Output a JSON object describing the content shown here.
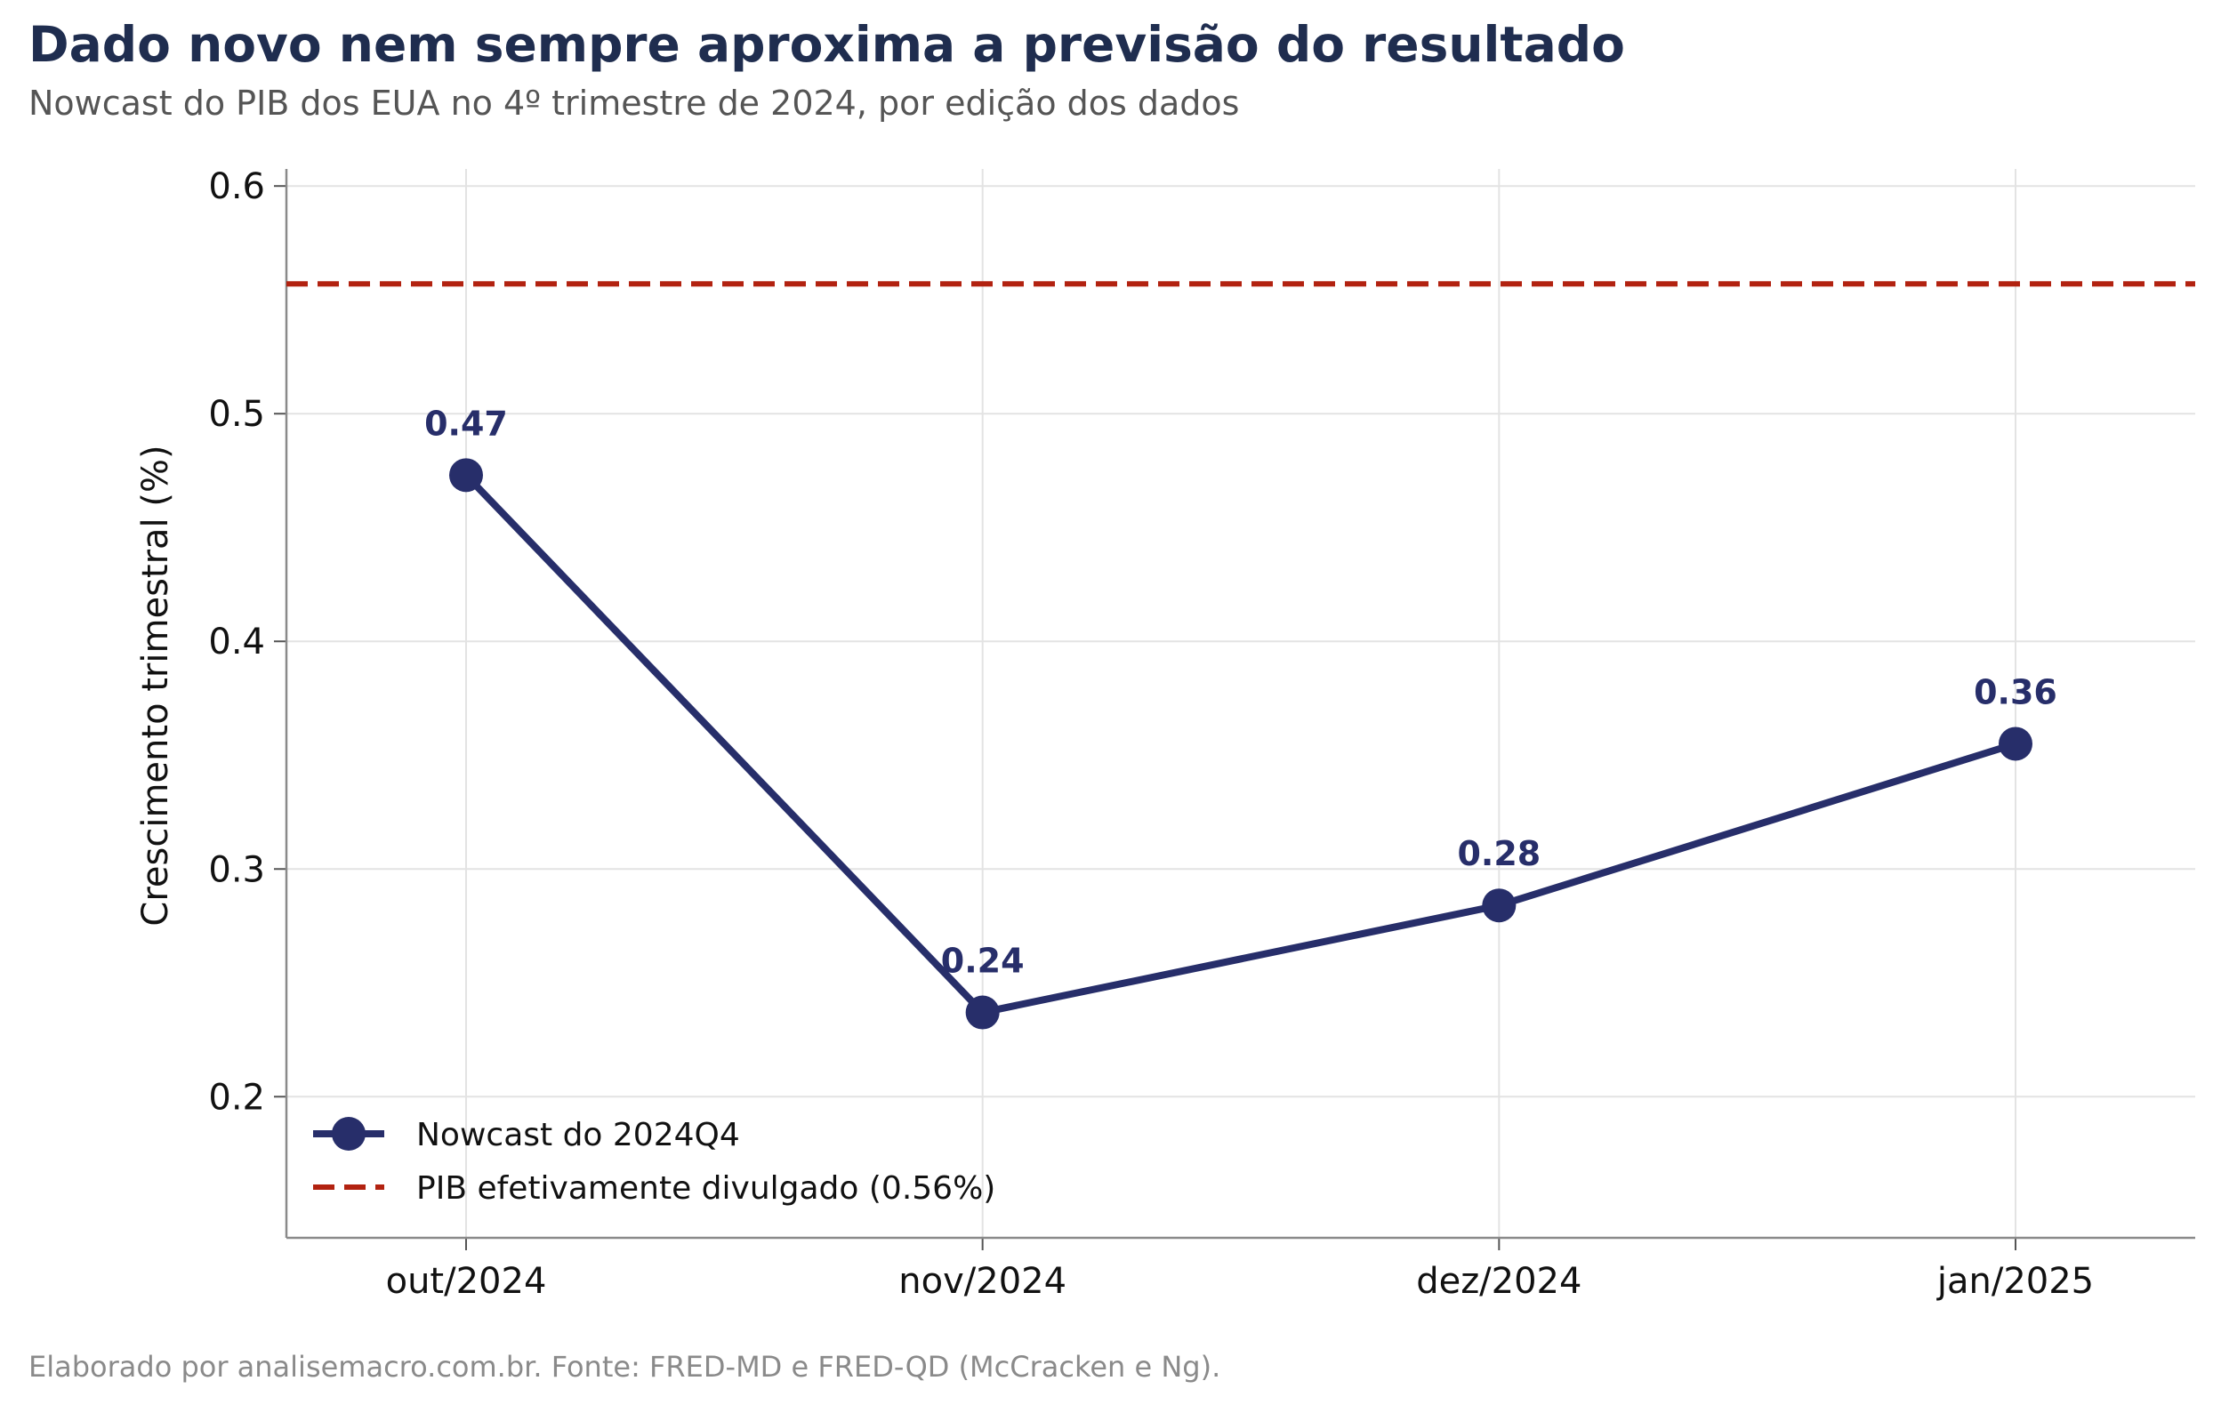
{
  "title": "Dado novo nem sempre aproxima a previsão do resultado",
  "subtitle": "Nowcast do PIB dos EUA no 4º trimestre de 2024, por edição dos dados",
  "footer": "Elaborado por analisemacro.com.br. Fonte: FRED-MD e FRED-QD (McCracken e Ng).",
  "chart_data": {
    "type": "line",
    "categories": [
      "out/2024",
      "nov/2024",
      "dez/2024",
      "jan/2025"
    ],
    "series": [
      {
        "name": "Nowcast do 2024Q4",
        "values": [
          0.473,
          0.237,
          0.284,
          0.355
        ],
        "data_labels": [
          "0.47",
          "0.24",
          "0.28",
          "0.36"
        ],
        "color": "#272e6a"
      }
    ],
    "reference_line": {
      "name": "PIB efetivamente divulgado (0.56%)",
      "value": 0.557,
      "color": "#b22210",
      "style": "dashed"
    },
    "ylabel": "Crescimento trimestral (%)",
    "xlabel": "",
    "ylim": [
      0.138,
      0.6075
    ],
    "yticks": [
      0.2,
      0.3,
      0.4,
      0.5,
      0.6
    ],
    "ytick_labels": [
      "0.2",
      "0.3",
      "0.4",
      "0.5",
      "0.6"
    ],
    "grid": true,
    "legend_position": "bottom-left"
  }
}
